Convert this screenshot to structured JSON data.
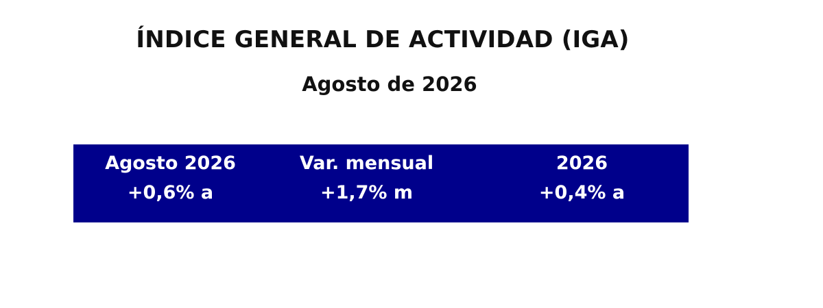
{
  "header": {
    "title": "ÍNDICE GENERAL DE ACTIVIDAD (IGA)",
    "subtitle": "Agosto de 2026"
  },
  "panel": {
    "background_color": "#00008b",
    "text_color": "#ffffff",
    "columns": [
      {
        "label": "Agosto 2026",
        "value": "+0,6% a"
      },
      {
        "label": "Var. mensual",
        "value": "+1,7% m"
      },
      {
        "label": "2026",
        "value": "+0,4% a"
      }
    ]
  }
}
